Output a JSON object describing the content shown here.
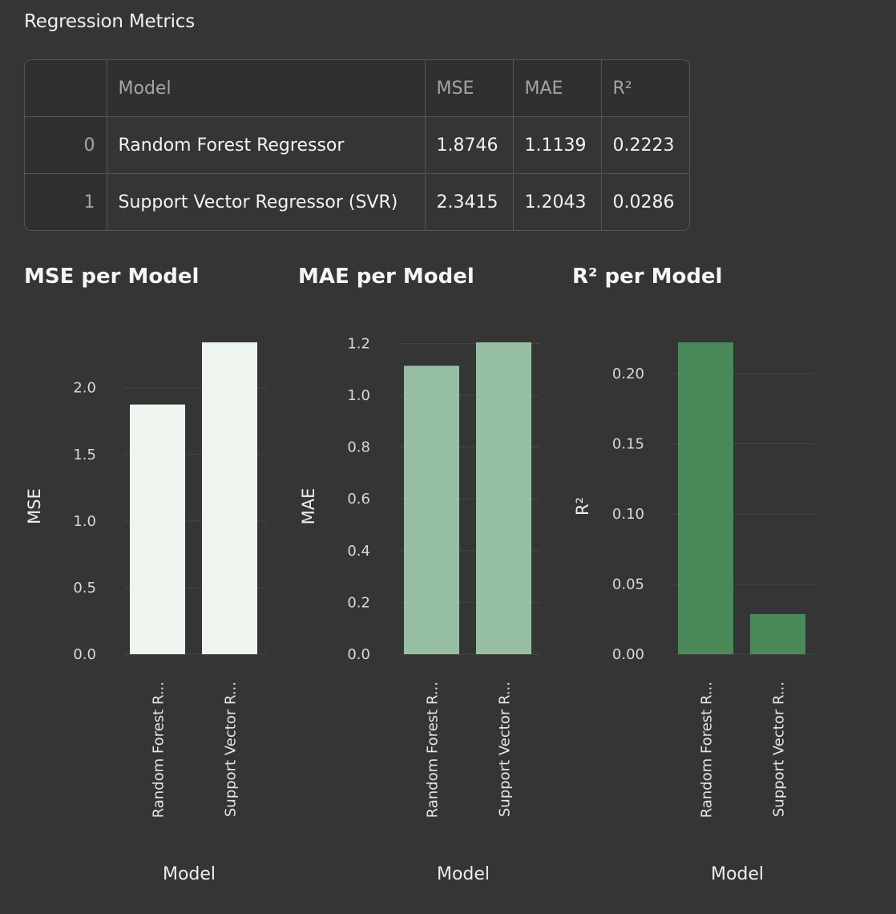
{
  "section_title": "Regression Metrics",
  "table": {
    "columns": [
      "",
      "Model",
      "MSE",
      "MAE",
      "R²"
    ],
    "rows": [
      {
        "index": "0",
        "model": "Random Forest Regressor",
        "mse": "1.8746",
        "mae": "1.1139",
        "r2": "0.2223"
      },
      {
        "index": "1",
        "model": "Support Vector Regressor (SVR)",
        "mse": "2.3415",
        "mae": "1.2043",
        "r2": "0.0286"
      }
    ]
  },
  "chart_data": [
    {
      "type": "bar",
      "title": "MSE per Model",
      "xlabel": "Model",
      "ylabel": "MSE",
      "categories": [
        "Random Forest R...",
        "Support Vector R..."
      ],
      "values": [
        1.8746,
        2.3415
      ],
      "ylim": [
        0,
        2.3415
      ],
      "yticks": [
        0,
        0.5,
        1.0,
        1.5,
        2.0
      ],
      "tick_decimals": 1,
      "color": "#eef4ee",
      "grid": true
    },
    {
      "type": "bar",
      "title": "MAE per Model",
      "xlabel": "Model",
      "ylabel": "MAE",
      "categories": [
        "Random Forest R...",
        "Support Vector R..."
      ],
      "values": [
        1.1139,
        1.2043
      ],
      "ylim": [
        0,
        1.2043
      ],
      "yticks": [
        0,
        0.2,
        0.4,
        0.6,
        0.8,
        1.0,
        1.2
      ],
      "tick_decimals": 1,
      "color": "#97bfa4",
      "grid": true
    },
    {
      "type": "bar",
      "title": "R² per Model",
      "xlabel": "Model",
      "ylabel": "R²",
      "categories": [
        "Random Forest R...",
        "Support Vector R..."
      ],
      "values": [
        0.2223,
        0.0286
      ],
      "ylim": [
        0,
        0.2223
      ],
      "yticks": [
        0,
        0.05,
        0.1,
        0.15,
        0.2
      ],
      "tick_decimals": 2,
      "color": "#4a8a59",
      "grid": true
    }
  ]
}
